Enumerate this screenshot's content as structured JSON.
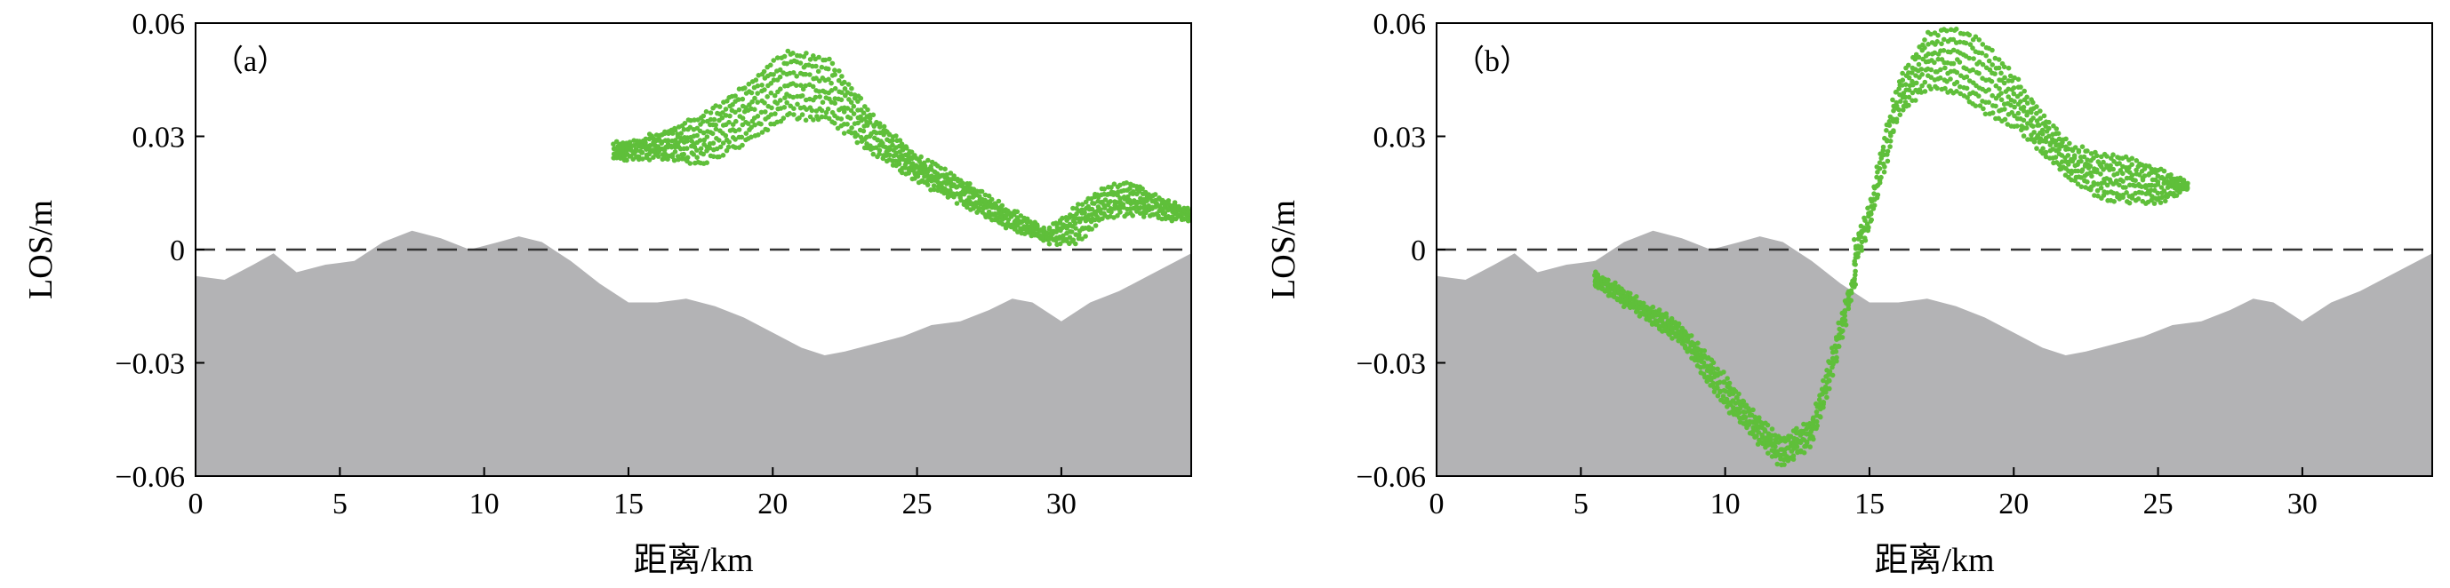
{
  "chart_data": [
    {
      "type": "scatter",
      "panel_label": "（a）",
      "xlabel": "距离/km",
      "ylabel": "LOS/m",
      "xlim": [
        0,
        34.5
      ],
      "ylim": [
        -0.06,
        0.06
      ],
      "xticks": [
        0,
        5,
        10,
        15,
        20,
        25,
        30
      ],
      "yticks": [
        -0.06,
        -0.03,
        0,
        0.03,
        0.06
      ],
      "ytick_labels": [
        "−0.06",
        "−0.03",
        "0",
        "0.03",
        "0.06"
      ],
      "zero_line": "dashed",
      "colors": {
        "points": "#5fbf3a",
        "terrain": "#b3b3b5"
      },
      "terrain_profile": {
        "x": [
          0,
          1,
          2,
          2.7,
          3.5,
          4.5,
          5.5,
          6.5,
          7.5,
          8.5,
          9.5,
          10.5,
          11.2,
          12,
          13,
          14,
          15,
          16,
          17,
          18,
          19,
          20,
          21,
          21.8,
          22.5,
          23.5,
          24.5,
          25.5,
          26.5,
          27.5,
          28.3,
          29,
          30,
          31,
          32,
          33,
          34.5
        ],
        "y": [
          -0.007,
          -0.008,
          -0.004,
          -0.001,
          -0.006,
          -0.004,
          -0.003,
          0.002,
          0.005,
          0.003,
          0,
          0.002,
          0.0035,
          0.002,
          -0.003,
          -0.009,
          -0.014,
          -0.014,
          -0.013,
          -0.015,
          -0.018,
          -0.022,
          -0.026,
          -0.028,
          -0.027,
          -0.025,
          -0.023,
          -0.02,
          -0.019,
          -0.016,
          -0.013,
          -0.014,
          -0.019,
          -0.014,
          -0.011,
          -0.007,
          -0.001
        ]
      },
      "bands": [
        {
          "x": [
            14.5,
            16,
            17.5,
            19,
            20.5,
            22,
            23.5,
            25,
            26.5,
            28,
            29.5,
            30.5,
            31.5,
            32.5,
            33.5,
            34.5
          ],
          "y_low": [
            0.024,
            0.024,
            0.022,
            0.027,
            0.034,
            0.033,
            0.025,
            0.018,
            0.012,
            0.006,
            0.002,
            0.001,
            0.008,
            0.009,
            0.008,
            0.008
          ],
          "y_high": [
            0.028,
            0.031,
            0.036,
            0.044,
            0.054,
            0.051,
            0.036,
            0.025,
            0.019,
            0.012,
            0.005,
            0.012,
            0.017,
            0.018,
            0.014,
            0.01
          ]
        }
      ]
    },
    {
      "type": "scatter",
      "panel_label": "（b）",
      "xlabel": "距离/km",
      "ylabel": "LOS/m",
      "xlim": [
        0,
        34.5
      ],
      "ylim": [
        -0.06,
        0.06
      ],
      "xticks": [
        0,
        5,
        10,
        15,
        20,
        25,
        30
      ],
      "yticks": [
        -0.06,
        -0.03,
        0,
        0.03,
        0.06
      ],
      "ytick_labels": [
        "−0.06",
        "−0.03",
        "0",
        "0.03",
        "0.06"
      ],
      "zero_line": "dashed",
      "colors": {
        "points": "#5fbf3a",
        "terrain": "#b3b3b5"
      },
      "terrain_profile": {
        "x": [
          0,
          1,
          2,
          2.7,
          3.5,
          4.5,
          5.5,
          6.5,
          7.5,
          8.5,
          9.5,
          10.5,
          11.2,
          12,
          13,
          14,
          15,
          16,
          17,
          18,
          19,
          20,
          21,
          21.8,
          22.5,
          23.5,
          24.5,
          25.5,
          26.5,
          27.5,
          28.3,
          29,
          30,
          31,
          32,
          33,
          34.5
        ],
        "y": [
          -0.007,
          -0.008,
          -0.004,
          -0.001,
          -0.006,
          -0.004,
          -0.003,
          0.002,
          0.005,
          0.003,
          0,
          0.002,
          0.0035,
          0.002,
          -0.003,
          -0.009,
          -0.014,
          -0.014,
          -0.013,
          -0.015,
          -0.018,
          -0.022,
          -0.026,
          -0.028,
          -0.027,
          -0.025,
          -0.023,
          -0.02,
          -0.019,
          -0.016,
          -0.013,
          -0.014,
          -0.019,
          -0.014,
          -0.011,
          -0.007,
          -0.001
        ]
      },
      "bands": [
        {
          "x": [
            5.5,
            7,
            8.5,
            10,
            11,
            12,
            13,
            13.5,
            14,
            14.5
          ],
          "y_low": [
            -0.01,
            -0.017,
            -0.025,
            -0.042,
            -0.05,
            -0.058,
            -0.052,
            -0.04,
            -0.025,
            -0.01
          ],
          "y_high": [
            -0.006,
            -0.013,
            -0.02,
            -0.033,
            -0.043,
            -0.05,
            -0.045,
            -0.032,
            -0.018,
            -0.004
          ]
        },
        {
          "x": [
            14.5,
            15,
            15.5,
            16,
            17,
            18,
            19,
            20,
            21,
            22,
            23,
            24,
            25,
            26
          ],
          "y_low": [
            -0.004,
            0.005,
            0.02,
            0.035,
            0.042,
            0.04,
            0.035,
            0.032,
            0.025,
            0.018,
            0.013,
            0.012,
            0.012,
            0.016
          ],
          "y_high": [
            0.003,
            0.012,
            0.03,
            0.045,
            0.058,
            0.06,
            0.056,
            0.047,
            0.036,
            0.028,
            0.026,
            0.025,
            0.022,
            0.018
          ]
        }
      ]
    }
  ]
}
